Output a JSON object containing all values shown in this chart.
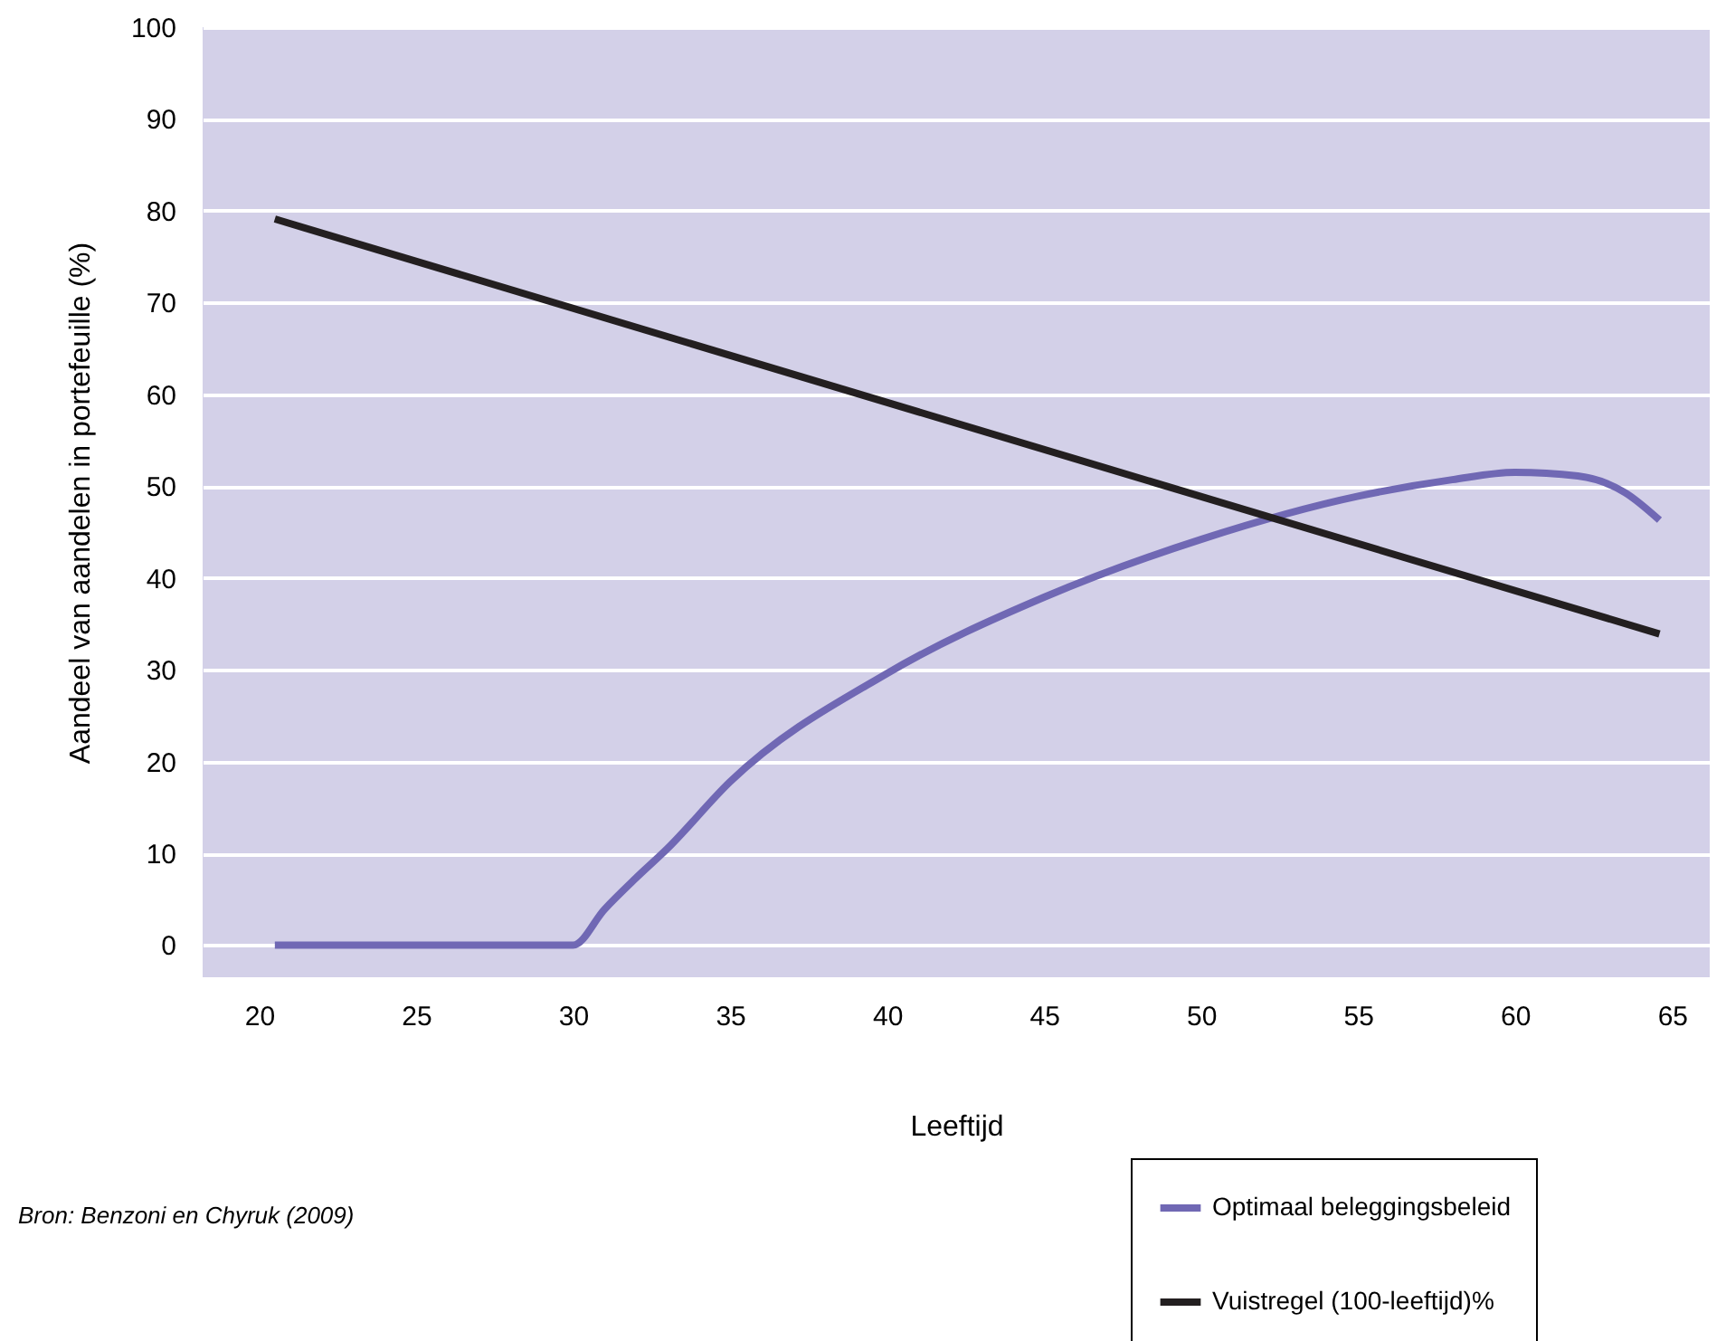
{
  "chart_data": {
    "type": "line",
    "xlabel": "Leeftijd",
    "ylabel": "Aandeel van aandelen in portefeuille (%)",
    "xlim": [
      18.2,
      66.2
    ],
    "xticks": [
      20,
      25,
      30,
      35,
      40,
      45,
      50,
      55,
      60,
      65
    ],
    "ylim": [
      -3.5,
      100
    ],
    "yticks": [
      0,
      10,
      20,
      30,
      40,
      50,
      60,
      70,
      80,
      90,
      100
    ],
    "grid": "y",
    "legend": "bottom right",
    "line_style": "solid",
    "marker": "none",
    "annotations": [
      "Bron: Benzoni en Chyruk (2009)"
    ],
    "series": [
      {
        "name": "Optimaal beleggingsbeleid",
        "color": "#7068b4",
        "x": [
          20.5,
          25,
          30,
          31,
          32,
          33,
          35,
          40,
          45,
          50,
          55,
          58,
          60,
          62,
          63.5,
          64.6
        ],
        "values": [
          0,
          0,
          0,
          3.9,
          7.3,
          10.5,
          17.8,
          29.6,
          37.9,
          44.2,
          48.9,
          50.7,
          51.5,
          51.1,
          49.3,
          46.3
        ]
      },
      {
        "name": "Vuistregel (100-leeftijd)%",
        "color": "#231f20",
        "x": [
          20.5,
          64.6
        ],
        "values": [
          79.1,
          33.9
        ]
      }
    ]
  }
}
